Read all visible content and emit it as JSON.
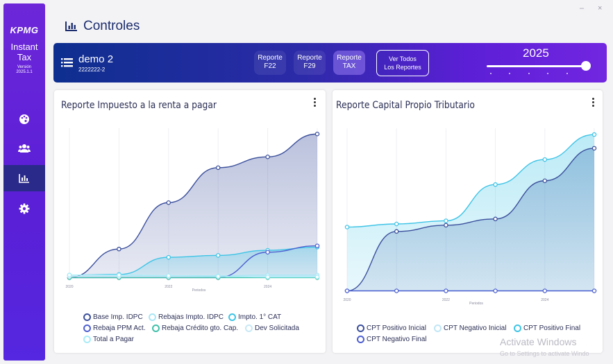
{
  "sidebar": {
    "logo": "KPMG",
    "app_name_line1": "Instant",
    "app_name_line2": "Tax",
    "version_label": "Versión",
    "version_number": "2025.1.1",
    "items": [
      {
        "name": "dashboard",
        "icon": "palette-icon",
        "active": false
      },
      {
        "name": "clients",
        "icon": "users-icon",
        "active": false
      },
      {
        "name": "controls",
        "icon": "bar-chart-icon",
        "active": true
      },
      {
        "name": "settings",
        "icon": "gear-icon",
        "active": false
      }
    ]
  },
  "window_controls": {
    "minimize": "–",
    "close": "×"
  },
  "page": {
    "title": "Controles",
    "icon": "bar-chart-icon"
  },
  "header": {
    "client_name": "demo 2",
    "client_rut": "2222222-2",
    "report_buttons": [
      {
        "line1": "Reporte",
        "line2": "F22",
        "selected": false
      },
      {
        "line1": "Reporte",
        "line2": "F29",
        "selected": false
      },
      {
        "line1": "Reporte",
        "line2": "TAX",
        "selected": true
      }
    ],
    "view_all_line1": "Ver Todos",
    "view_all_line2": "Los Reportes",
    "year": "2025",
    "year_slider_value": 1.0
  },
  "chart_data": [
    {
      "type": "area",
      "title": "Reporte Impuesto a la renta a pagar",
      "xlabel": "Periodos",
      "x": [
        2020,
        2021,
        2022,
        2023,
        2024,
        2025
      ],
      "x_tick_labels": [
        "2020",
        "2022",
        "2024"
      ],
      "ylim": [
        -5,
        235
      ],
      "grid": true,
      "legend": "bottom",
      "series": [
        {
          "name": "Base Imp. IDPC",
          "color": "#3b4f9c",
          "fill": true,
          "values": [
            0,
            45,
            118,
            173,
            190,
            226
          ]
        },
        {
          "name": "Rebajas Impto. IDPC",
          "color": "#a8e6f5",
          "fill": false,
          "values": [
            4,
            4,
            3,
            3,
            4,
            4
          ]
        },
        {
          "name": "Impto. 1° CAT",
          "color": "#3ec4e6",
          "fill": true,
          "values": [
            4,
            5,
            32,
            35,
            43,
            48
          ]
        },
        {
          "name": "Rebaja PPM Act.",
          "color": "#4d5fd0",
          "fill": false,
          "values": [
            0,
            0,
            0,
            0,
            40,
            50
          ]
        },
        {
          "name": "Rebaja Crédito gto. Cap.",
          "color": "#3fc0a9",
          "fill": false,
          "values": [
            0,
            0,
            0,
            0,
            0,
            0
          ]
        },
        {
          "name": "Dev Solicitada",
          "color": "#c8e8f5",
          "fill": false,
          "values": [
            2,
            2,
            2,
            2,
            2,
            2
          ]
        },
        {
          "name": "Total a Pagar",
          "color": "#a8ecf8",
          "fill": false,
          "values": [
            4,
            4,
            3,
            2,
            1,
            1
          ]
        }
      ]
    },
    {
      "type": "area",
      "title": "Reporte Capital Propio Tributario",
      "xlabel": "Periodos",
      "x": [
        2020,
        2021,
        2022,
        2023,
        2024,
        2025
      ],
      "x_tick_labels": [
        "2020",
        "2022",
        "2024"
      ],
      "ylim": [
        -5,
        260
      ],
      "grid": true,
      "legend": "bottom",
      "series": [
        {
          "name": "CPT Positivo Inicial",
          "color": "#3b4f9c",
          "fill": true,
          "values": [
            0,
            95,
            105,
            115,
            176,
            228
          ]
        },
        {
          "name": "CPT Negativo Inicial",
          "color": "#c0e6f5",
          "fill": false,
          "values": [
            0,
            0,
            0,
            0,
            0,
            0
          ]
        },
        {
          "name": "CPT Positivo Final",
          "color": "#3ec4e6",
          "fill": true,
          "values": [
            102,
            107,
            112,
            170,
            210,
            250
          ]
        },
        {
          "name": "CPT Negativo Final",
          "color": "#4d5fd0",
          "fill": false,
          "values": [
            0,
            0,
            0,
            0,
            0,
            0
          ]
        }
      ]
    }
  ],
  "watermark": {
    "line1": "Activate Windows",
    "line2": "Go to Settings to activate Windo"
  }
}
